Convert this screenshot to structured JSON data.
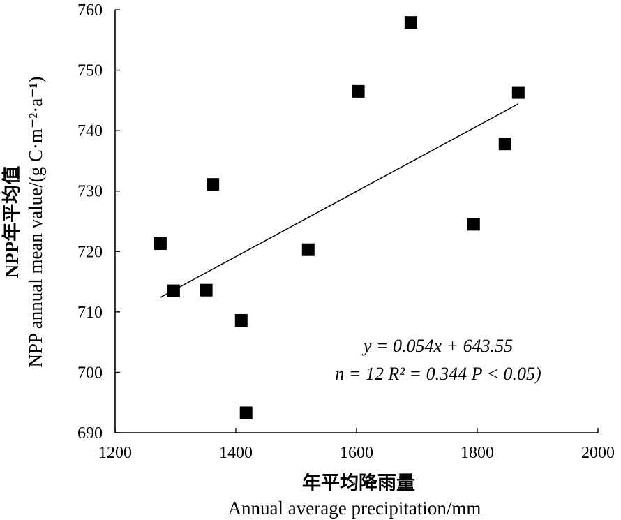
{
  "chart_data": {
    "type": "scatter",
    "title": "",
    "xlabel_cn": "年平均降雨量",
    "xlabel_en": "Annual average precipitation/mm",
    "ylabel_cn": "NPP年平均值",
    "ylabel_en": "NPP annual mean value/(g C·m⁻²·a⁻¹)",
    "xlim": [
      1200,
      2000
    ],
    "ylim": [
      690,
      760
    ],
    "xticks": [
      1200,
      1400,
      1600,
      1800,
      2000
    ],
    "yticks": [
      690,
      700,
      710,
      720,
      730,
      740,
      750,
      760
    ],
    "grid": false,
    "points": [
      {
        "x": 1275,
        "y": 721.3
      },
      {
        "x": 1297,
        "y": 713.5
      },
      {
        "x": 1351,
        "y": 713.6
      },
      {
        "x": 1362,
        "y": 731.1
      },
      {
        "x": 1409,
        "y": 708.6
      },
      {
        "x": 1417,
        "y": 693.3
      },
      {
        "x": 1520,
        "y": 720.3
      },
      {
        "x": 1603,
        "y": 746.5
      },
      {
        "x": 1690,
        "y": 757.9
      },
      {
        "x": 1794,
        "y": 724.5
      },
      {
        "x": 1846,
        "y": 737.8
      },
      {
        "x": 1868,
        "y": 746.3
      }
    ],
    "trendline": {
      "x_start": 1275,
      "x_end": 1868,
      "slope": 0.054,
      "intercept": 643.55
    },
    "annotation_line1": "y = 0.054x + 643.55",
    "annotation_line2": "n = 12   R² = 0.344   P < 0.05)"
  }
}
